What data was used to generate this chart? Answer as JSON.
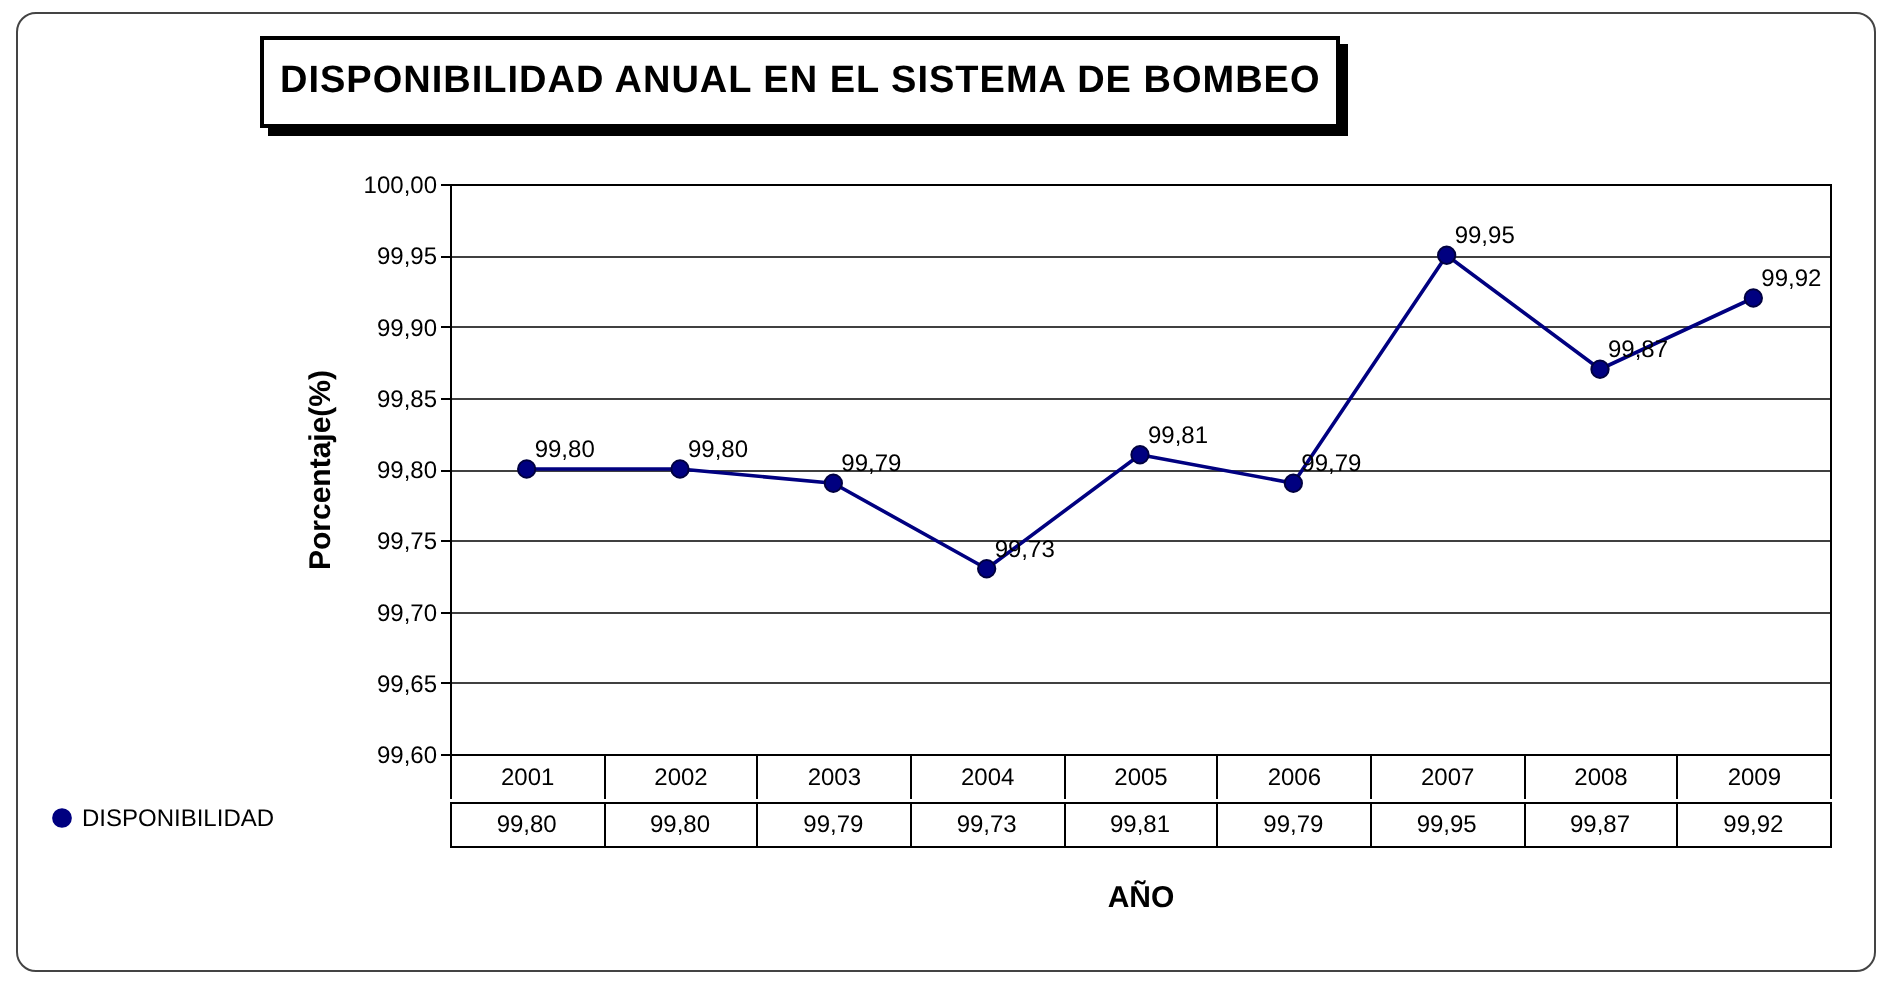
{
  "chart_data": {
    "type": "line",
    "title": "DISPONIBILIDAD ANUAL EN EL SISTEMA DE BOMBEO",
    "xlabel": "AÑO",
    "ylabel": "Porcentaje(%)",
    "categories": [
      "2001",
      "2002",
      "2003",
      "2004",
      "2005",
      "2006",
      "2007",
      "2008",
      "2009"
    ],
    "series": [
      {
        "name": "DISPONIBILIDAD",
        "color": "#000080",
        "values": [
          99.8,
          99.8,
          99.79,
          99.73,
          99.81,
          99.79,
          99.95,
          99.87,
          99.92
        ],
        "value_labels": [
          "99,80",
          "99,80",
          "99,79",
          "99,73",
          "99,81",
          "99,79",
          "99,95",
          "99,87",
          "99,92"
        ]
      }
    ],
    "ylim": [
      99.6,
      100.0
    ],
    "yticks": [
      {
        "value": 99.6,
        "label": "99,60"
      },
      {
        "value": 99.65,
        "label": "99,65"
      },
      {
        "value": 99.7,
        "label": "99,70"
      },
      {
        "value": 99.75,
        "label": "99,75"
      },
      {
        "value": 99.8,
        "label": "99,80"
      },
      {
        "value": 99.85,
        "label": "99,85"
      },
      {
        "value": 99.9,
        "label": "99,90"
      },
      {
        "value": 99.95,
        "label": "99,95"
      },
      {
        "value": 100.0,
        "label": "100,00"
      }
    ],
    "grid": "y",
    "legend": "bottom left",
    "marker": "circle",
    "line_style": "solid"
  }
}
